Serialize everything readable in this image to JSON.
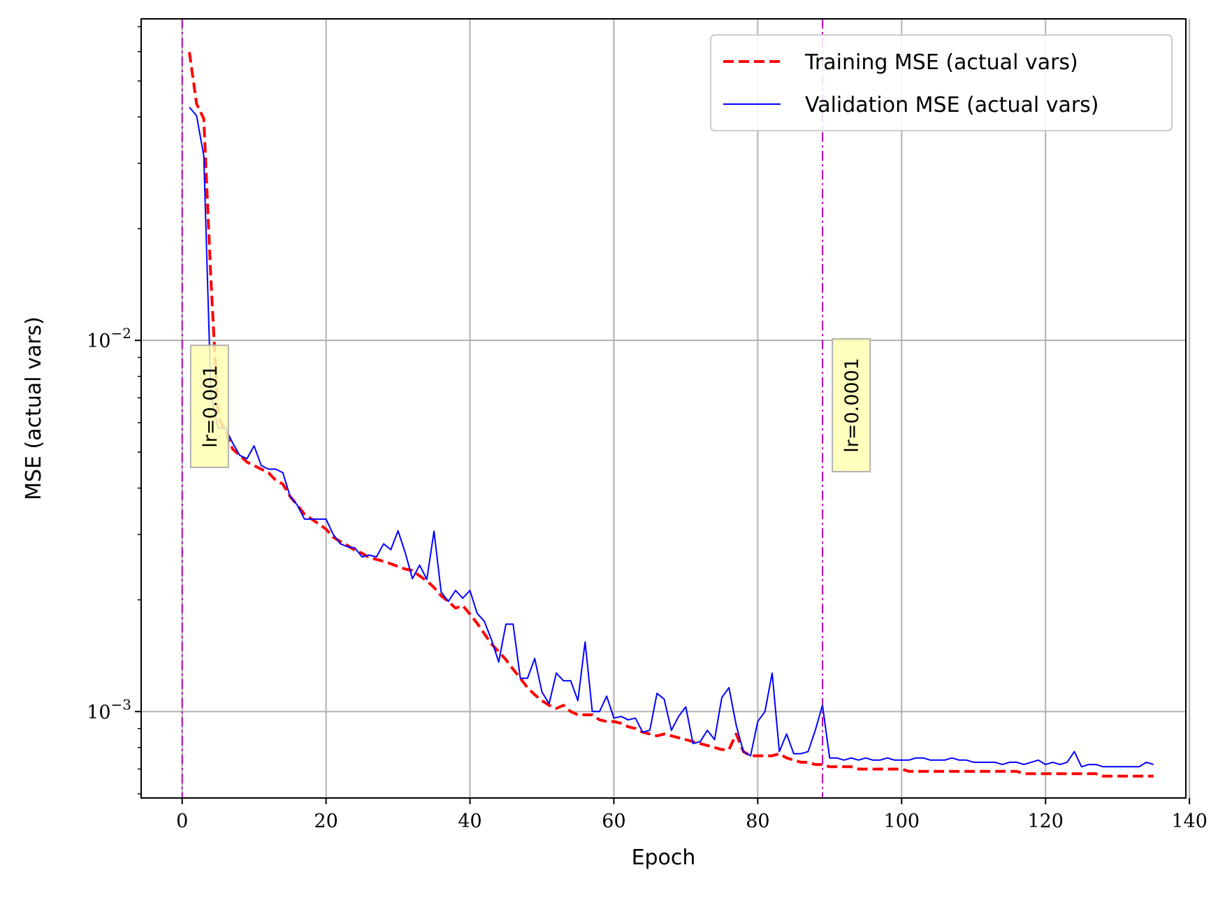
{
  "chart_data": {
    "type": "line",
    "xlabel": "Epoch",
    "ylabel": "MSE (actual vars)",
    "xscale": "linear",
    "yscale": "log",
    "xlim": [
      -5.7,
      139.5
    ],
    "ylim": [
      0.000585,
      0.0735
    ],
    "xticks": [
      0,
      20,
      40,
      60,
      80,
      100,
      120,
      140
    ],
    "xtick_labels": [
      "0",
      "20",
      "40",
      "60",
      "80",
      "100",
      "120",
      "140"
    ],
    "yticks_major": [
      0.001,
      0.01
    ],
    "ytick_major_labels": [
      {
        "base": "10",
        "exp": "−3"
      },
      {
        "base": "10",
        "exp": "−2"
      }
    ],
    "grid": true,
    "legend_position": "upper right",
    "vlines": [
      {
        "x": 0,
        "color": "#bf00bf",
        "style": "dashdot",
        "label": "lr=0.001"
      },
      {
        "x": 89,
        "color": "#bf00bf",
        "style": "dashdot",
        "label": "lr=0.0001"
      }
    ],
    "series": [
      {
        "name": "Training MSE (actual vars)",
        "color": "#ff0000",
        "style": "dashed",
        "x": [
          1,
          2,
          3,
          4,
          5,
          6,
          7,
          8,
          9,
          10,
          11,
          12,
          13,
          14,
          15,
          16,
          17,
          18,
          19,
          20,
          21,
          22,
          23,
          24,
          25,
          26,
          27,
          28,
          29,
          30,
          31,
          32,
          33,
          34,
          35,
          36,
          37,
          38,
          39,
          40,
          41,
          42,
          43,
          44,
          45,
          46,
          47,
          48,
          49,
          50,
          51,
          52,
          53,
          54,
          55,
          56,
          57,
          58,
          59,
          60,
          61,
          62,
          63,
          64,
          65,
          66,
          67,
          68,
          69,
          70,
          71,
          72,
          73,
          74,
          75,
          76,
          77,
          78,
          79,
          80,
          81,
          82,
          83,
          84,
          85,
          86,
          87,
          88,
          89,
          90,
          91,
          92,
          93,
          94,
          95,
          96,
          97,
          98,
          99,
          100,
          101,
          102,
          103,
          104,
          105,
          106,
          107,
          108,
          109,
          110,
          111,
          112,
          113,
          114,
          115,
          116,
          117,
          118,
          119,
          120,
          121,
          122,
          123,
          124,
          125,
          126,
          127,
          128,
          129,
          130,
          131,
          132,
          133,
          134,
          135
        ],
        "values": [
          0.0598,
          0.0434,
          0.0396,
          0.0145,
          0.0062,
          0.0057,
          0.0051,
          0.0049,
          0.0047,
          0.0046,
          0.0045,
          0.0044,
          0.0042,
          0.0041,
          0.0038,
          0.0036,
          0.0034,
          0.0033,
          0.0032,
          0.0031,
          0.00295,
          0.00287,
          0.0028,
          0.00272,
          0.00267,
          0.0026,
          0.00257,
          0.00254,
          0.0025,
          0.00246,
          0.00242,
          0.0024,
          0.00232,
          0.00225,
          0.00216,
          0.00205,
          0.00198,
          0.0019,
          0.00193,
          0.00183,
          0.00173,
          0.00162,
          0.00152,
          0.00145,
          0.00138,
          0.0013,
          0.00123,
          0.00116,
          0.00111,
          0.00107,
          0.00104,
          0.00102,
          0.00104,
          0.001,
          0.00098,
          0.00098,
          0.00098,
          0.00095,
          0.00094,
          0.00094,
          0.00093,
          0.00091,
          0.0009,
          0.00088,
          0.00087,
          0.00086,
          0.00087,
          0.00086,
          0.00085,
          0.00084,
          0.00083,
          0.00082,
          0.00081,
          0.0008,
          0.00079,
          0.00079,
          0.00087,
          0.00078,
          0.00076,
          0.00076,
          0.00076,
          0.00076,
          0.00077,
          0.00075,
          0.00074,
          0.00073,
          0.00073,
          0.00072,
          0.00072,
          0.00071,
          0.00071,
          0.00071,
          0.00071,
          0.0007,
          0.0007,
          0.0007,
          0.0007,
          0.0007,
          0.0007,
          0.0007,
          0.00069,
          0.00069,
          0.00069,
          0.00069,
          0.00069,
          0.00069,
          0.00069,
          0.00069,
          0.00069,
          0.00069,
          0.00069,
          0.00069,
          0.00069,
          0.00069,
          0.00069,
          0.00069,
          0.00068,
          0.00068,
          0.00068,
          0.00068,
          0.00068,
          0.00068,
          0.00068,
          0.00068,
          0.00068,
          0.00068,
          0.00068,
          0.00067,
          0.00067,
          0.00067,
          0.00067,
          0.00067,
          0.00067,
          0.00067,
          0.00067
        ]
      },
      {
        "name": "Validation MSE (actual vars)",
        "color": "#0000ff",
        "style": "solid",
        "x": [
          1,
          2,
          3,
          4,
          5,
          6,
          7,
          8,
          9,
          10,
          11,
          12,
          13,
          14,
          15,
          16,
          17,
          18,
          19,
          20,
          21,
          22,
          23,
          24,
          25,
          26,
          27,
          28,
          29,
          30,
          31,
          32,
          33,
          34,
          35,
          36,
          37,
          38,
          39,
          40,
          41,
          42,
          43,
          44,
          45,
          46,
          47,
          48,
          49,
          50,
          51,
          52,
          53,
          54,
          55,
          56,
          57,
          58,
          59,
          60,
          61,
          62,
          63,
          64,
          65,
          66,
          67,
          68,
          69,
          70,
          71,
          72,
          73,
          74,
          75,
          76,
          77,
          78,
          79,
          80,
          81,
          82,
          83,
          84,
          85,
          86,
          87,
          88,
          89,
          90,
          91,
          92,
          93,
          94,
          95,
          96,
          97,
          98,
          99,
          100,
          101,
          102,
          103,
          104,
          105,
          106,
          107,
          108,
          109,
          110,
          111,
          112,
          113,
          114,
          115,
          116,
          117,
          118,
          119,
          120,
          121,
          122,
          123,
          124,
          125,
          126,
          127,
          128,
          129,
          130,
          131,
          132,
          133,
          134,
          135
        ],
        "values": [
          0.0425,
          0.0403,
          0.0315,
          0.0071,
          0.0058,
          0.0058,
          0.0053,
          0.0049,
          0.0048,
          0.0052,
          0.0046,
          0.0045,
          0.0045,
          0.0044,
          0.0038,
          0.0036,
          0.0033,
          0.0033,
          0.0033,
          0.0033,
          0.003,
          0.00283,
          0.00278,
          0.00276,
          0.00261,
          0.00264,
          0.00261,
          0.00283,
          0.00273,
          0.00307,
          0.00268,
          0.00228,
          0.00248,
          0.00227,
          0.00306,
          0.0021,
          0.00198,
          0.00212,
          0.00202,
          0.00212,
          0.00184,
          0.00175,
          0.00156,
          0.00136,
          0.00172,
          0.00172,
          0.00123,
          0.00123,
          0.00139,
          0.00113,
          0.00105,
          0.00127,
          0.00121,
          0.00121,
          0.00107,
          0.00154,
          0.001,
          0.001,
          0.0011,
          0.00096,
          0.00097,
          0.00095,
          0.00096,
          0.00088,
          0.00089,
          0.00112,
          0.00108,
          0.00089,
          0.00097,
          0.00103,
          0.00082,
          0.00083,
          0.00089,
          0.00084,
          0.00109,
          0.00116,
          0.00092,
          0.00078,
          0.00076,
          0.00094,
          0.001,
          0.00127,
          0.00078,
          0.00087,
          0.00077,
          0.00077,
          0.00078,
          0.00089,
          0.00104,
          0.00075,
          0.00075,
          0.00074,
          0.00075,
          0.00074,
          0.00075,
          0.00074,
          0.00074,
          0.00075,
          0.00074,
          0.00074,
          0.00074,
          0.00075,
          0.00075,
          0.00074,
          0.00074,
          0.00074,
          0.00075,
          0.00074,
          0.00074,
          0.00073,
          0.00073,
          0.00073,
          0.00073,
          0.00072,
          0.00073,
          0.00073,
          0.00072,
          0.00073,
          0.00074,
          0.00072,
          0.00073,
          0.00072,
          0.00073,
          0.00078,
          0.00071,
          0.00072,
          0.00072,
          0.00071,
          0.00071,
          0.00071,
          0.00071,
          0.00071,
          0.00071,
          0.00073,
          0.00072
        ]
      }
    ]
  }
}
